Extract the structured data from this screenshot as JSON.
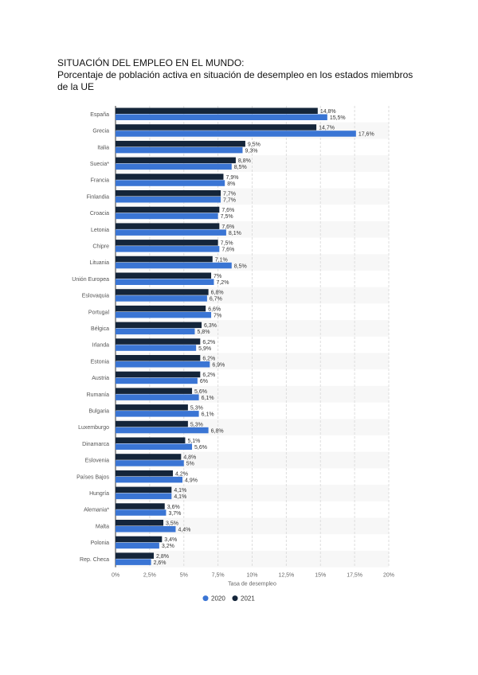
{
  "document": {
    "title": "SITUACIÓN DEL EMPLEO EN EL MUNDO:",
    "subtitle": "Porcentaje de población activa en situación de desempleo en los estados miembros de la UE"
  },
  "chart_data": {
    "type": "bar",
    "orientation": "horizontal",
    "xlabel": "Tasa de desempleo",
    "xlim": [
      0,
      20
    ],
    "xticks": [
      "0%",
      "2,5%",
      "5%",
      "7,5%",
      "10%",
      "12,5%",
      "15%",
      "17,5%",
      "20%"
    ],
    "grid": true,
    "legend_position": "bottom",
    "categories": [
      "España",
      "Grecia",
      "Italia",
      "Suecia*",
      "Francia",
      "Finlandia",
      "Croacia",
      "Letonia",
      "Chipre",
      "Lituania",
      "Unión Europea",
      "Eslovaquia",
      "Portugal",
      "Bélgica",
      "Irlanda",
      "Estonia",
      "Austria",
      "Rumanía",
      "Bulgaria",
      "Luxemburgo",
      "Dinamarca",
      "Eslovenia",
      "Países Bajos",
      "Hungría",
      "Alemania*",
      "Malta",
      "Polonia",
      "Rep. Checa"
    ],
    "series": [
      {
        "name": "2021",
        "color": "#14253a",
        "values": [
          14.8,
          14.7,
          9.5,
          8.8,
          7.9,
          7.7,
          7.6,
          7.6,
          7.5,
          7.1,
          7,
          6.8,
          6.6,
          6.3,
          6.2,
          6.2,
          6.2,
          5.6,
          5.3,
          5.3,
          5.1,
          4.8,
          4.2,
          4.1,
          3.6,
          3.5,
          3.4,
          2.8
        ]
      },
      {
        "name": "2020",
        "color": "#3a75d4",
        "values": [
          15.5,
          17.6,
          9.3,
          8.5,
          8,
          7.7,
          7.5,
          8.1,
          7.6,
          8.5,
          7.2,
          6.7,
          7,
          5.8,
          5.9,
          6.9,
          6,
          6.1,
          6.1,
          6.8,
          5.6,
          5,
          4.9,
          4.1,
          3.7,
          4.4,
          3.2,
          2.6
        ]
      }
    ],
    "legend": [
      "2020",
      "2021"
    ]
  }
}
